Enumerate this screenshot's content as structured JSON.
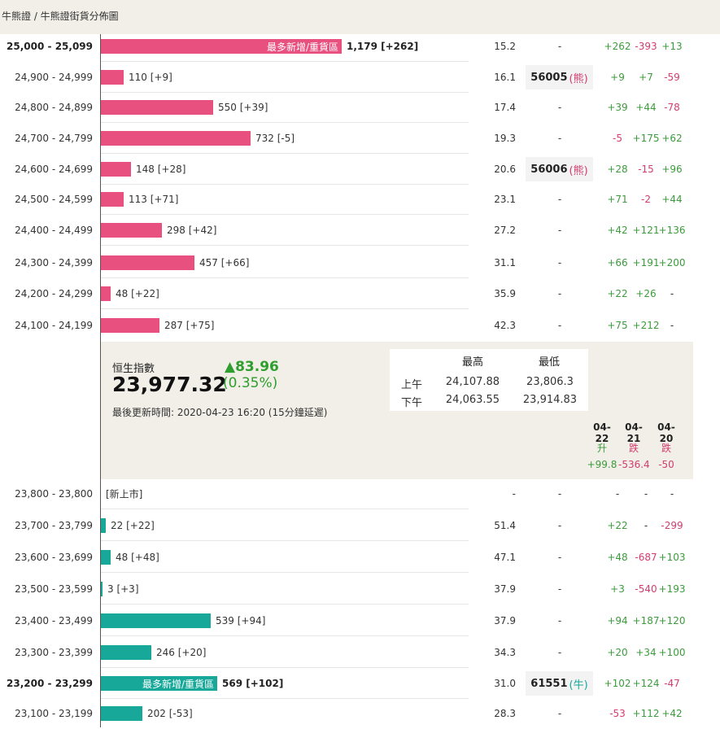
{
  "breadcrumb": "牛熊證 / 牛熊證街貨分佈圖",
  "colors": {
    "bear": "#e8507f",
    "bull": "#17a89a",
    "up": "#3c9b3c",
    "down": "#d23c6e",
    "panel": "#f1efe7"
  },
  "rows": [
    {
      "range": "25,000 - 25,099",
      "bold": true,
      "side": "bear",
      "value": 1179,
      "count": "1,179 [+262]",
      "bar_label": "最多新增/重貨區",
      "pct": "15.2",
      "code": "",
      "tag": "",
      "d1": "+262",
      "d2": "-393",
      "d3": "+13"
    },
    {
      "range": "24,900 - 24,999",
      "bold": false,
      "side": "bear",
      "value": 110,
      "count": "110 [+9]",
      "bar_label": "",
      "pct": "16.1",
      "code": "56005",
      "tag": "(熊)",
      "d1": "+9",
      "d2": "+7",
      "d3": "-59"
    },
    {
      "range": "24,800 - 24,899",
      "bold": false,
      "side": "bear",
      "value": 550,
      "count": "550 [+39]",
      "bar_label": "",
      "pct": "17.4",
      "code": "",
      "tag": "",
      "d1": "+39",
      "d2": "+44",
      "d3": "-78"
    },
    {
      "range": "24,700 - 24,799",
      "bold": false,
      "side": "bear",
      "value": 732,
      "count": "732 [-5]",
      "bar_label": "",
      "pct": "19.3",
      "code": "",
      "tag": "",
      "d1": "-5",
      "d2": "+175",
      "d3": "+62"
    },
    {
      "range": "24,600 - 24,699",
      "bold": false,
      "side": "bear",
      "value": 148,
      "count": "148 [+28]",
      "bar_label": "",
      "pct": "20.6",
      "code": "56006",
      "tag": "(熊)",
      "d1": "+28",
      "d2": "-15",
      "d3": "+96"
    },
    {
      "range": "24,500 - 24,599",
      "bold": false,
      "side": "bear",
      "value": 113,
      "count": "113 [+71]",
      "bar_label": "",
      "pct": "23.1",
      "code": "",
      "tag": "",
      "d1": "+71",
      "d2": "-2",
      "d3": "+44"
    },
    {
      "range": "24,400 - 24,499",
      "bold": false,
      "side": "bear",
      "value": 298,
      "count": "298 [+42]",
      "bar_label": "",
      "pct": "27.2",
      "code": "",
      "tag": "",
      "d1": "+42",
      "d2": "+121",
      "d3": "+136"
    },
    {
      "range": "24,300 - 24,399",
      "bold": false,
      "side": "bear",
      "value": 457,
      "count": "457 [+66]",
      "bar_label": "",
      "pct": "31.1",
      "code": "",
      "tag": "",
      "d1": "+66",
      "d2": "+191",
      "d3": "+200"
    },
    {
      "range": "24,200 - 24,299",
      "bold": false,
      "side": "bear",
      "value": 48,
      "count": "48 [+22]",
      "bar_label": "",
      "pct": "35.9",
      "code": "",
      "tag": "",
      "d1": "+22",
      "d2": "+26",
      "d3": "-"
    },
    {
      "range": "24,100 - 24,199",
      "bold": false,
      "side": "bear",
      "value": 287,
      "count": "287 [+75]",
      "bar_label": "",
      "pct": "42.3",
      "code": "",
      "tag": "",
      "d1": "+75",
      "d2": "+212",
      "d3": "-"
    },
    {
      "range": "23,800 - 23,800",
      "bold": false,
      "side": "bull",
      "value": 0,
      "count": "[新上市]",
      "bar_label": "",
      "pct": "-",
      "code": "",
      "tag": "",
      "d1": "-",
      "d2": "-",
      "d3": "-"
    },
    {
      "range": "23,700 - 23,799",
      "bold": false,
      "side": "bull",
      "value": 22,
      "count": "22 [+22]",
      "bar_label": "",
      "pct": "51.4",
      "code": "",
      "tag": "",
      "d1": "+22",
      "d2": "-",
      "d3": "-299"
    },
    {
      "range": "23,600 - 23,699",
      "bold": false,
      "side": "bull",
      "value": 48,
      "count": "48 [+48]",
      "bar_label": "",
      "pct": "47.1",
      "code": "",
      "tag": "",
      "d1": "+48",
      "d2": "-687",
      "d3": "+103"
    },
    {
      "range": "23,500 - 23,599",
      "bold": false,
      "side": "bull",
      "value": 3,
      "count": "3 [+3]",
      "bar_label": "",
      "pct": "37.9",
      "code": "",
      "tag": "",
      "d1": "+3",
      "d2": "-540",
      "d3": "+193"
    },
    {
      "range": "23,400 - 23,499",
      "bold": false,
      "side": "bull",
      "value": 539,
      "count": "539 [+94]",
      "bar_label": "",
      "pct": "37.9",
      "code": "",
      "tag": "",
      "d1": "+94",
      "d2": "+187",
      "d3": "+120"
    },
    {
      "range": "23,300 - 23,399",
      "bold": false,
      "side": "bull",
      "value": 246,
      "count": "246 [+20]",
      "bar_label": "",
      "pct": "34.3",
      "code": "",
      "tag": "",
      "d1": "+20",
      "d2": "+34",
      "d3": "+100"
    },
    {
      "range": "23,200 - 23,299",
      "bold": true,
      "side": "bull",
      "value": 569,
      "count": "569 [+102]",
      "bar_label": "最多新增/重貨區",
      "pct": "31.0",
      "code": "61551",
      "tag": "(牛)",
      "d1": "+102",
      "d2": "+124",
      "d3": "-47"
    },
    {
      "range": "23,100 - 23,199",
      "bold": false,
      "side": "bull",
      "value": 202,
      "count": "202 [-53]",
      "bar_label": "",
      "pct": "28.3",
      "code": "",
      "tag": "",
      "d1": "-53",
      "d2": "+112",
      "d3": "+42"
    }
  ],
  "index": {
    "name": "恒生指數",
    "value": "23,977.32",
    "change": "▲83.96",
    "change_pct": "(0.35%)",
    "updated": "最後更新時間: 2020-04-23 16:20 (15分鐘延遲)",
    "hl_headers": [
      "最高",
      "最低"
    ],
    "hl_rows": [
      {
        "label": "上午",
        "high": "24,107.88",
        "low": "23,806.3"
      },
      {
        "label": "下午",
        "high": "24,063.55",
        "low": "23,914.83"
      }
    ],
    "days": [
      {
        "date": "04-22",
        "dir": "升",
        "change": "+99.8"
      },
      {
        "date": "04-21",
        "dir": "跌",
        "change": "-536.4"
      },
      {
        "date": "04-20",
        "dir": "跌",
        "change": "-50"
      }
    ]
  }
}
